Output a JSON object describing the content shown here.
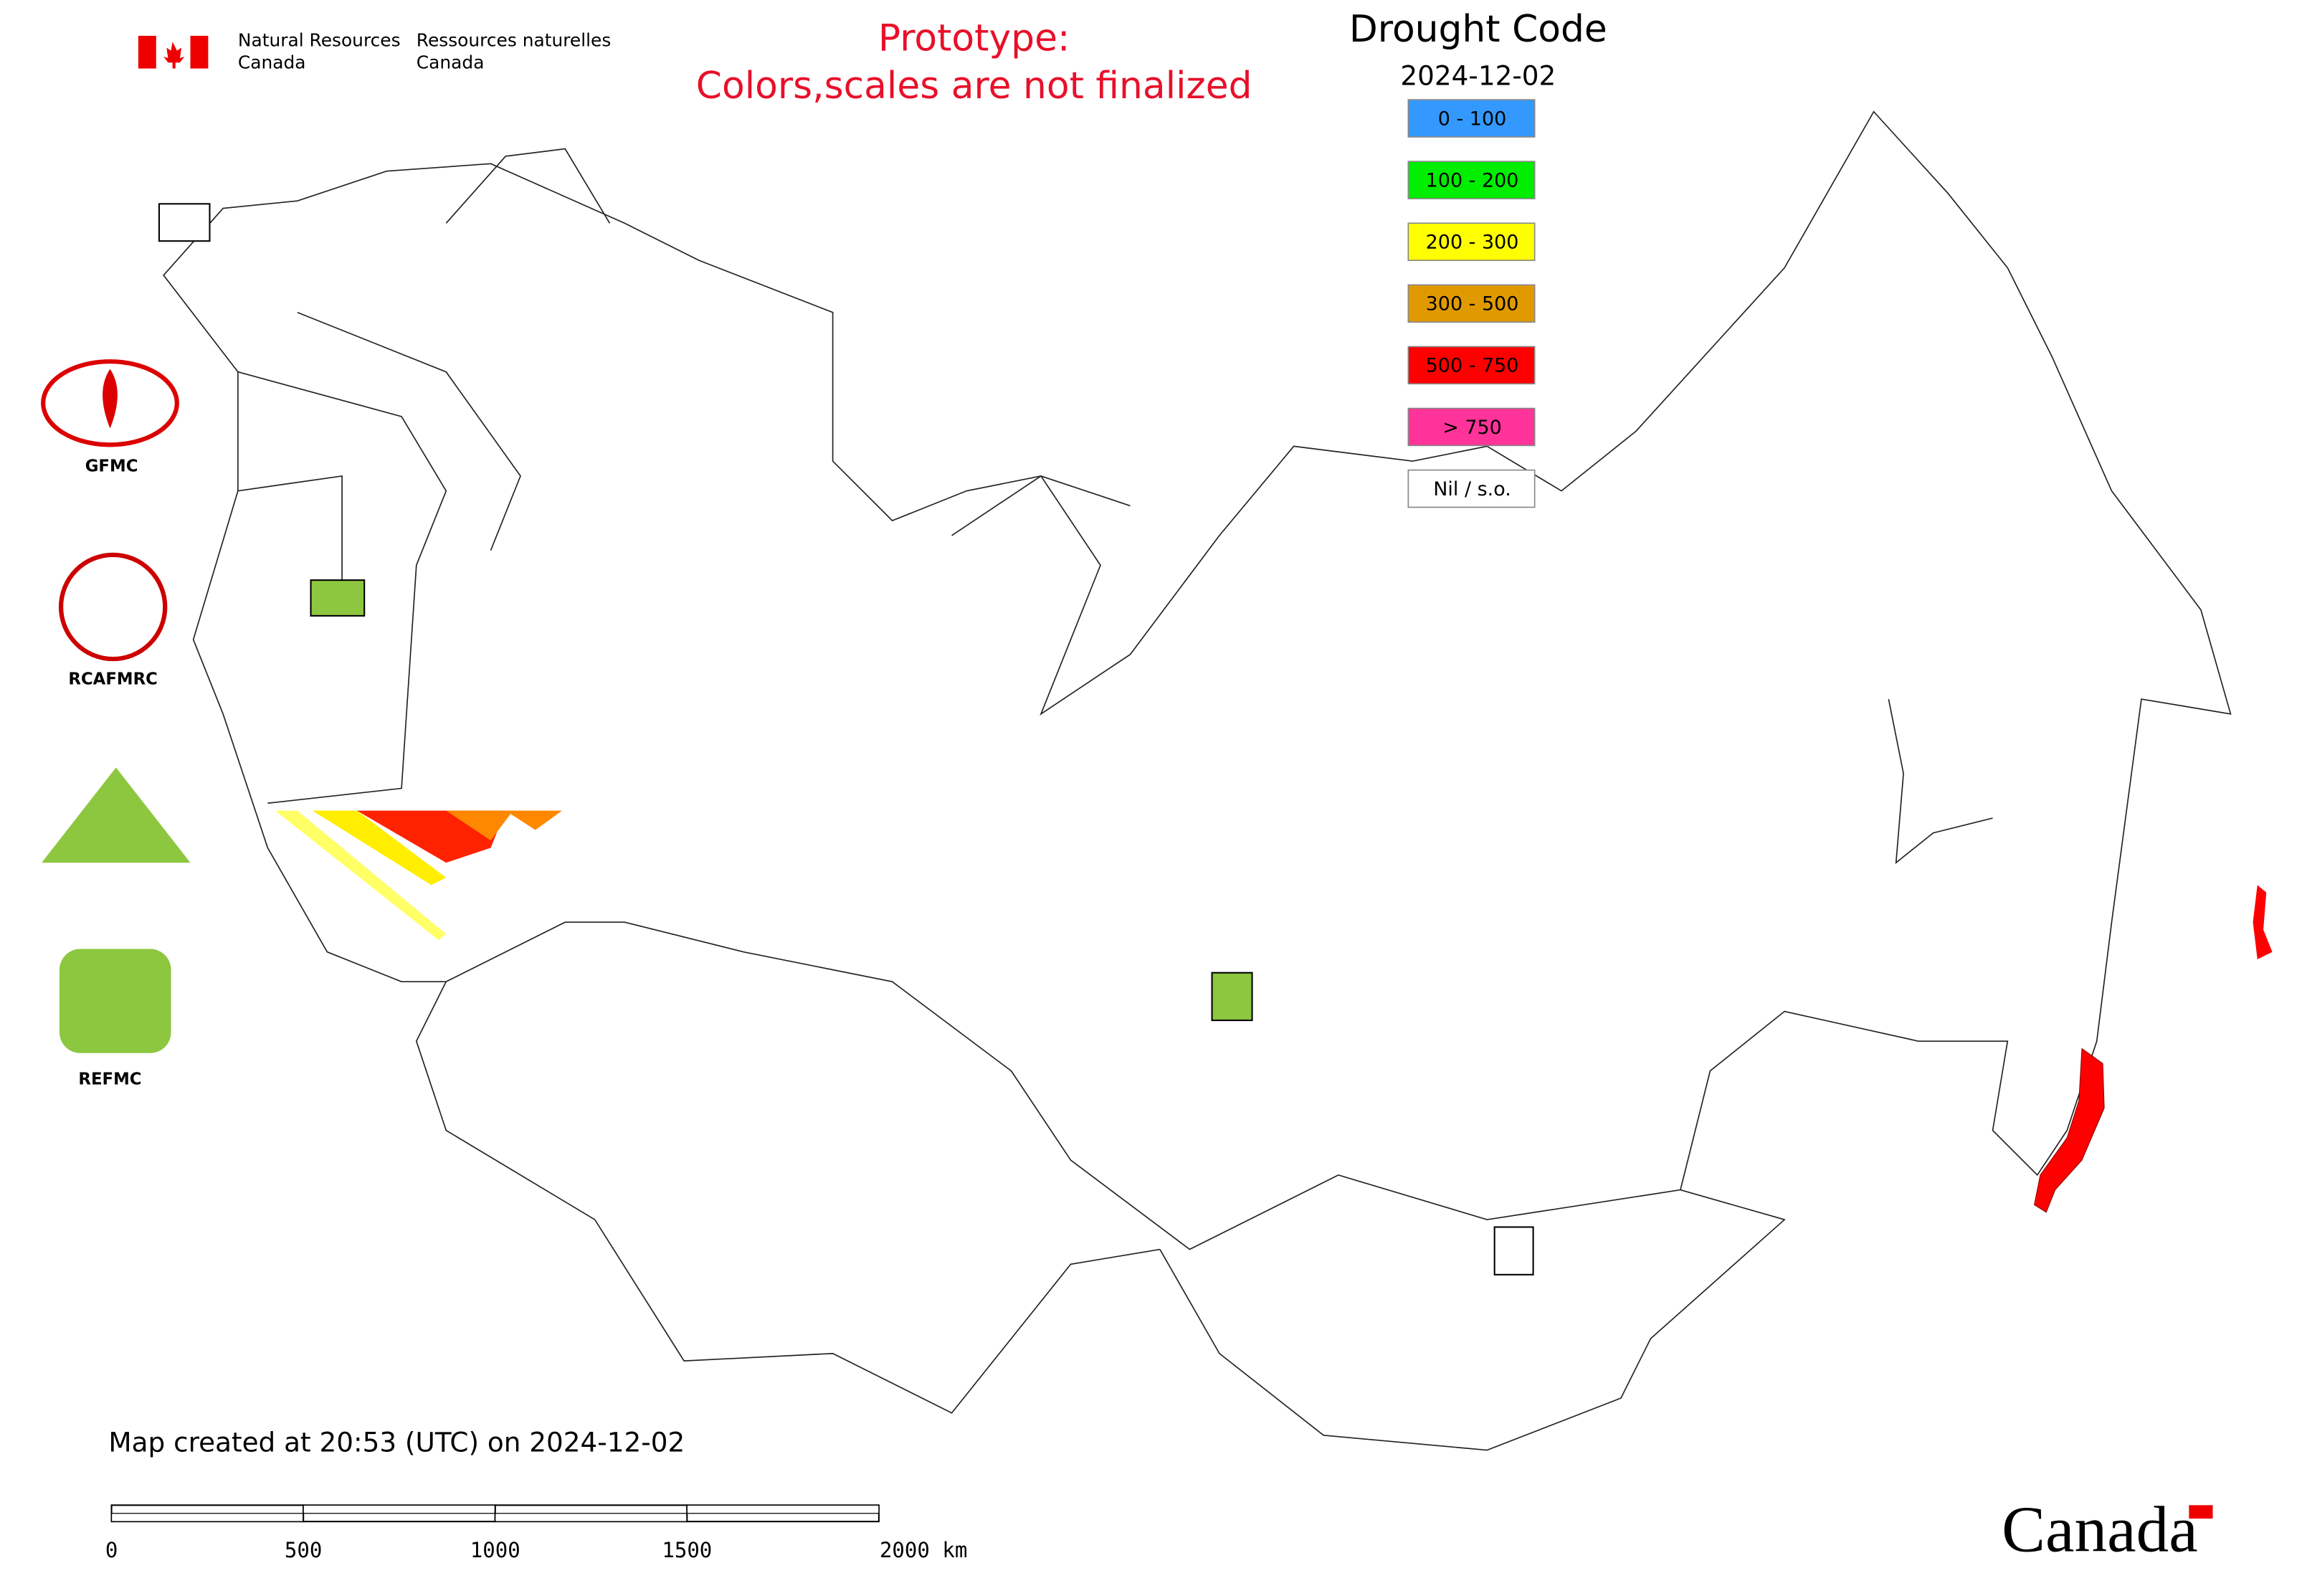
{
  "header": {
    "department_en": [
      "Natural Resources",
      "Canada"
    ],
    "department_fr": [
      "Ressources naturelles",
      "Canada"
    ],
    "notice": [
      "Prototype:",
      "Colors,scales are not finalized"
    ]
  },
  "legend": {
    "title": "Drought Code",
    "date": "2024-12-02",
    "items": [
      {
        "label": "0 - 100",
        "color": "#3399ff"
      },
      {
        "label": "100 - 200",
        "color": "#00ee00"
      },
      {
        "label": "200 - 300",
        "color": "#ffff00"
      },
      {
        "label": "300 - 500",
        "color": "#e09a00"
      },
      {
        "label": "500 - 750",
        "color": "#ff0000"
      },
      {
        "label": "> 750",
        "color": "#ff3399"
      },
      {
        "label": "Nil / s.o.",
        "color": "#ffffff"
      }
    ]
  },
  "logos": [
    "GFMC",
    "RCAFMRC",
    "REFMC"
  ],
  "footer": {
    "created": "Map created at 20:53 (UTC) on 2024-12-02",
    "scale_labels": [
      "0",
      "500",
      "1000",
      "1500",
      "2000 km"
    ],
    "wordmark": "Canada"
  }
}
